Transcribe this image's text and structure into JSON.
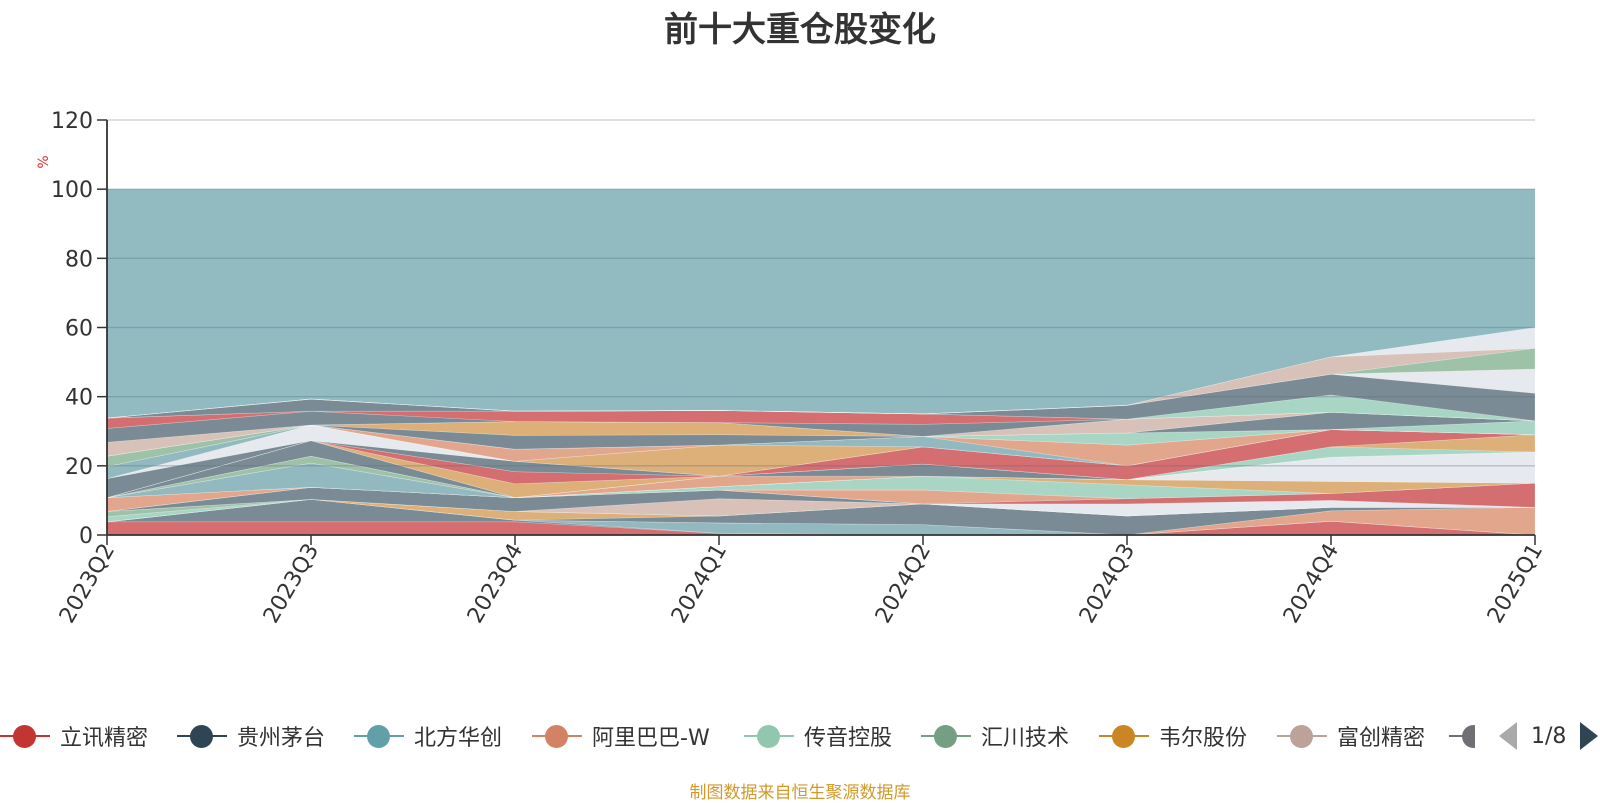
{
  "title": "前十大重仓股变化",
  "source": "制图数据来自恒生聚源数据库",
  "legend_page": "1/8",
  "chart_data": {
    "type": "area",
    "title": "前十大重仓股变化",
    "ylabel": "%",
    "ylim": [
      0,
      120
    ],
    "yticks": [
      0,
      20,
      40,
      60,
      80,
      100,
      120
    ],
    "categories": [
      "2023Q2",
      "2023Q3",
      "2023Q4",
      "2024Q1",
      "2024Q2",
      "2024Q3",
      "2024Q4",
      "2025Q1"
    ],
    "grid": true,
    "legend_position": "bottom",
    "legend_visible": [
      "立讯精密",
      "贵州茅台",
      "北方华创",
      "阿里巴巴-W",
      "传音控股",
      "汇川技术",
      "韦尔股份",
      "富创精密"
    ],
    "background_band": {
      "value": 100,
      "color": "#91bac1"
    },
    "series": [
      {
        "name": "立讯精密",
        "color": "#d46e70",
        "values": [
          3.8,
          3.8,
          3.8,
          0.5,
          0.0,
          0.0,
          4.0,
          0.0
        ]
      },
      {
        "name": "",
        "color": "#7a8b95",
        "values": [
          0.0,
          6.5,
          0.5,
          0.0,
          0.0,
          0.0,
          0.0,
          0.0
        ]
      },
      {
        "name": "",
        "color": "#93b9c0",
        "values": [
          0.0,
          0.0,
          0.0,
          3.0,
          3.0,
          0.0,
          0.0,
          0.0
        ]
      },
      {
        "name": "",
        "color": "#e2a68d",
        "values": [
          0.0,
          0.0,
          0.0,
          0.0,
          0.0,
          0.0,
          3.0,
          8.0
        ]
      },
      {
        "name": "",
        "color": "#7a8b95",
        "values": [
          0.0,
          0.0,
          0.0,
          2.0,
          6.0,
          5.5,
          1.0,
          0.0
        ]
      },
      {
        "name": "",
        "color": "#ddb07a",
        "values": [
          0.0,
          0.0,
          2.5,
          0.0,
          0.0,
          0.0,
          0.0,
          0.0
        ]
      },
      {
        "name": "",
        "color": "#a9d6c4",
        "values": [
          1.5,
          0.0,
          0.0,
          0.0,
          0.0,
          0.0,
          0.0,
          0.0
        ]
      },
      {
        "name": "",
        "color": "#9ec2a8",
        "values": [
          1.5,
          0.0,
          0.0,
          0.0,
          0.0,
          0.0,
          0.0,
          0.0
        ]
      },
      {
        "name": "",
        "color": "#d8c1b8",
        "values": [
          0.0,
          0.0,
          0.0,
          5.0,
          0.0,
          0.0,
          0.0,
          0.0
        ]
      },
      {
        "name": "",
        "color": "#7a8b95",
        "values": [
          0.0,
          3.5,
          4.0,
          2.5,
          0.0,
          0.0,
          0.0,
          0.0
        ]
      },
      {
        "name": "",
        "color": "#e6e9ee",
        "values": [
          0.0,
          0.0,
          0.0,
          0.0,
          0.0,
          3.5,
          2.0,
          0.0
        ]
      },
      {
        "name": "",
        "color": "#d46e70",
        "values": [
          0.0,
          0.0,
          0.0,
          0.0,
          0.0,
          1.5,
          2.0,
          7.0
        ]
      },
      {
        "name": "",
        "color": "#e2a68d",
        "values": [
          4.0,
          0.0,
          0.0,
          0.0,
          4.0,
          0.0,
          0.0,
          0.0
        ]
      },
      {
        "name": "",
        "color": "#a9d6c4",
        "values": [
          0.0,
          0.0,
          0.0,
          1.0,
          4.0,
          4.0,
          0.0,
          0.0
        ]
      },
      {
        "name": "",
        "color": "#ddb07a",
        "values": [
          0.0,
          0.0,
          0.0,
          0.0,
          0.0,
          1.5,
          3.5,
          0.0
        ]
      },
      {
        "name": "",
        "color": "#93b9c0",
        "values": [
          0.0,
          7.0,
          0.0,
          0.0,
          0.0,
          0.0,
          0.0,
          0.0
        ]
      },
      {
        "name": "",
        "color": "#e6e9ee",
        "values": [
          0.0,
          0.0,
          0.0,
          0.0,
          0.0,
          0.0,
          7.0,
          9.0
        ]
      },
      {
        "name": "",
        "color": "#9ec2a8",
        "values": [
          0.0,
          2.0,
          0.0,
          0.0,
          0.0,
          0.0,
          0.0,
          0.0
        ]
      },
      {
        "name": "",
        "color": "#e2a68d",
        "values": [
          0.0,
          0.0,
          0.0,
          3.0,
          0.0,
          0.0,
          0.0,
          0.0
        ]
      },
      {
        "name": "",
        "color": "#7a8b95",
        "values": [
          0.0,
          4.5,
          0.0,
          0.0,
          3.5,
          0.0,
          0.0,
          0.0
        ]
      },
      {
        "name": "",
        "color": "#a9d6c4",
        "values": [
          0.0,
          0.0,
          0.0,
          0.0,
          0.0,
          0.0,
          3.0,
          0.0
        ]
      },
      {
        "name": "",
        "color": "#ddb07a",
        "values": [
          0.0,
          0.0,
          4.0,
          0.0,
          0.0,
          0.0,
          0.0,
          5.0
        ]
      },
      {
        "name": "",
        "color": "#d46e70",
        "values": [
          0.0,
          0.0,
          3.5,
          0.0,
          5.0,
          4.0,
          5.0,
          0.0
        ]
      },
      {
        "name": "",
        "color": "#7a8b95",
        "values": [
          5.5,
          0.0,
          3.0,
          0.0,
          0.0,
          0.0,
          0.0,
          0.0
        ]
      },
      {
        "name": "",
        "color": "#e6e9ee",
        "values": [
          0.0,
          4.5,
          0.0,
          0.0,
          0.0,
          0.0,
          0.0,
          0.0
        ]
      },
      {
        "name": "",
        "color": "#ddb07a",
        "values": [
          0.0,
          0.0,
          0.0,
          9.0,
          0.0,
          0.0,
          0.0,
          0.0
        ]
      },
      {
        "name": "",
        "color": "#93b9c0",
        "values": [
          3.5,
          0.0,
          0.0,
          0.0,
          3.0,
          0.0,
          0.0,
          0.0
        ]
      },
      {
        "name": "",
        "color": "#e2a68d",
        "values": [
          0.0,
          0.0,
          3.5,
          0.0,
          0.0,
          6.0,
          0.0,
          0.0
        ]
      },
      {
        "name": "",
        "color": "#9ec2a8",
        "values": [
          3.0,
          0.0,
          0.0,
          0.0,
          0.0,
          0.0,
          0.0,
          0.0
        ]
      },
      {
        "name": "",
        "color": "#a9d6c4",
        "values": [
          0.0,
          0.0,
          0.0,
          0.0,
          0.0,
          3.5,
          0.0,
          4.0
        ]
      },
      {
        "name": "",
        "color": "#7a8b95",
        "values": [
          0.0,
          0.0,
          4.0,
          3.0,
          0.0,
          0.0,
          5.0,
          0.0
        ]
      },
      {
        "name": "",
        "color": "#ddb07a",
        "values": [
          0.0,
          0.0,
          4.0,
          3.5,
          0.0,
          0.0,
          0.0,
          0.0
        ]
      },
      {
        "name": "",
        "color": "#d8c1b8",
        "values": [
          4.0,
          0.0,
          0.0,
          0.0,
          0.0,
          4.0,
          0.0,
          0.0
        ]
      },
      {
        "name": "",
        "color": "#7a8b95",
        "values": [
          4.0,
          4.0,
          0.0,
          0.0,
          3.5,
          0.0,
          0.0,
          0.0
        ]
      },
      {
        "name": "",
        "color": "#d46e70",
        "values": [
          3.0,
          0.0,
          3.0,
          3.5,
          3.0,
          0.0,
          0.0,
          0.0
        ]
      },
      {
        "name": "",
        "color": "#a9d6c4",
        "values": [
          0.0,
          0.0,
          0.0,
          0.0,
          0.0,
          0.0,
          5.0,
          0.0
        ]
      },
      {
        "name": "",
        "color": "#7a8b95",
        "values": [
          0.0,
          3.5,
          0.0,
          0.0,
          0.0,
          4.0,
          6.0,
          8.0
        ]
      },
      {
        "name": "",
        "color": "#e6e9ee",
        "values": [
          0.0,
          0.0,
          0.0,
          0.0,
          0.0,
          0.0,
          0.0,
          7.0
        ]
      },
      {
        "name": "",
        "color": "#9ec2a8",
        "values": [
          0.0,
          0.0,
          0.0,
          0.0,
          0.0,
          0.0,
          0.0,
          6.0
        ]
      },
      {
        "name": "",
        "color": "#d8c1b8",
        "values": [
          0.0,
          0.0,
          0.0,
          0.0,
          0.0,
          0.0,
          5.0,
          0.0
        ]
      },
      {
        "name": "",
        "color": "#e6e9ee",
        "values": [
          0.0,
          0.0,
          0.0,
          0.0,
          0.0,
          0.0,
          0.0,
          6.0
        ]
      }
    ]
  }
}
